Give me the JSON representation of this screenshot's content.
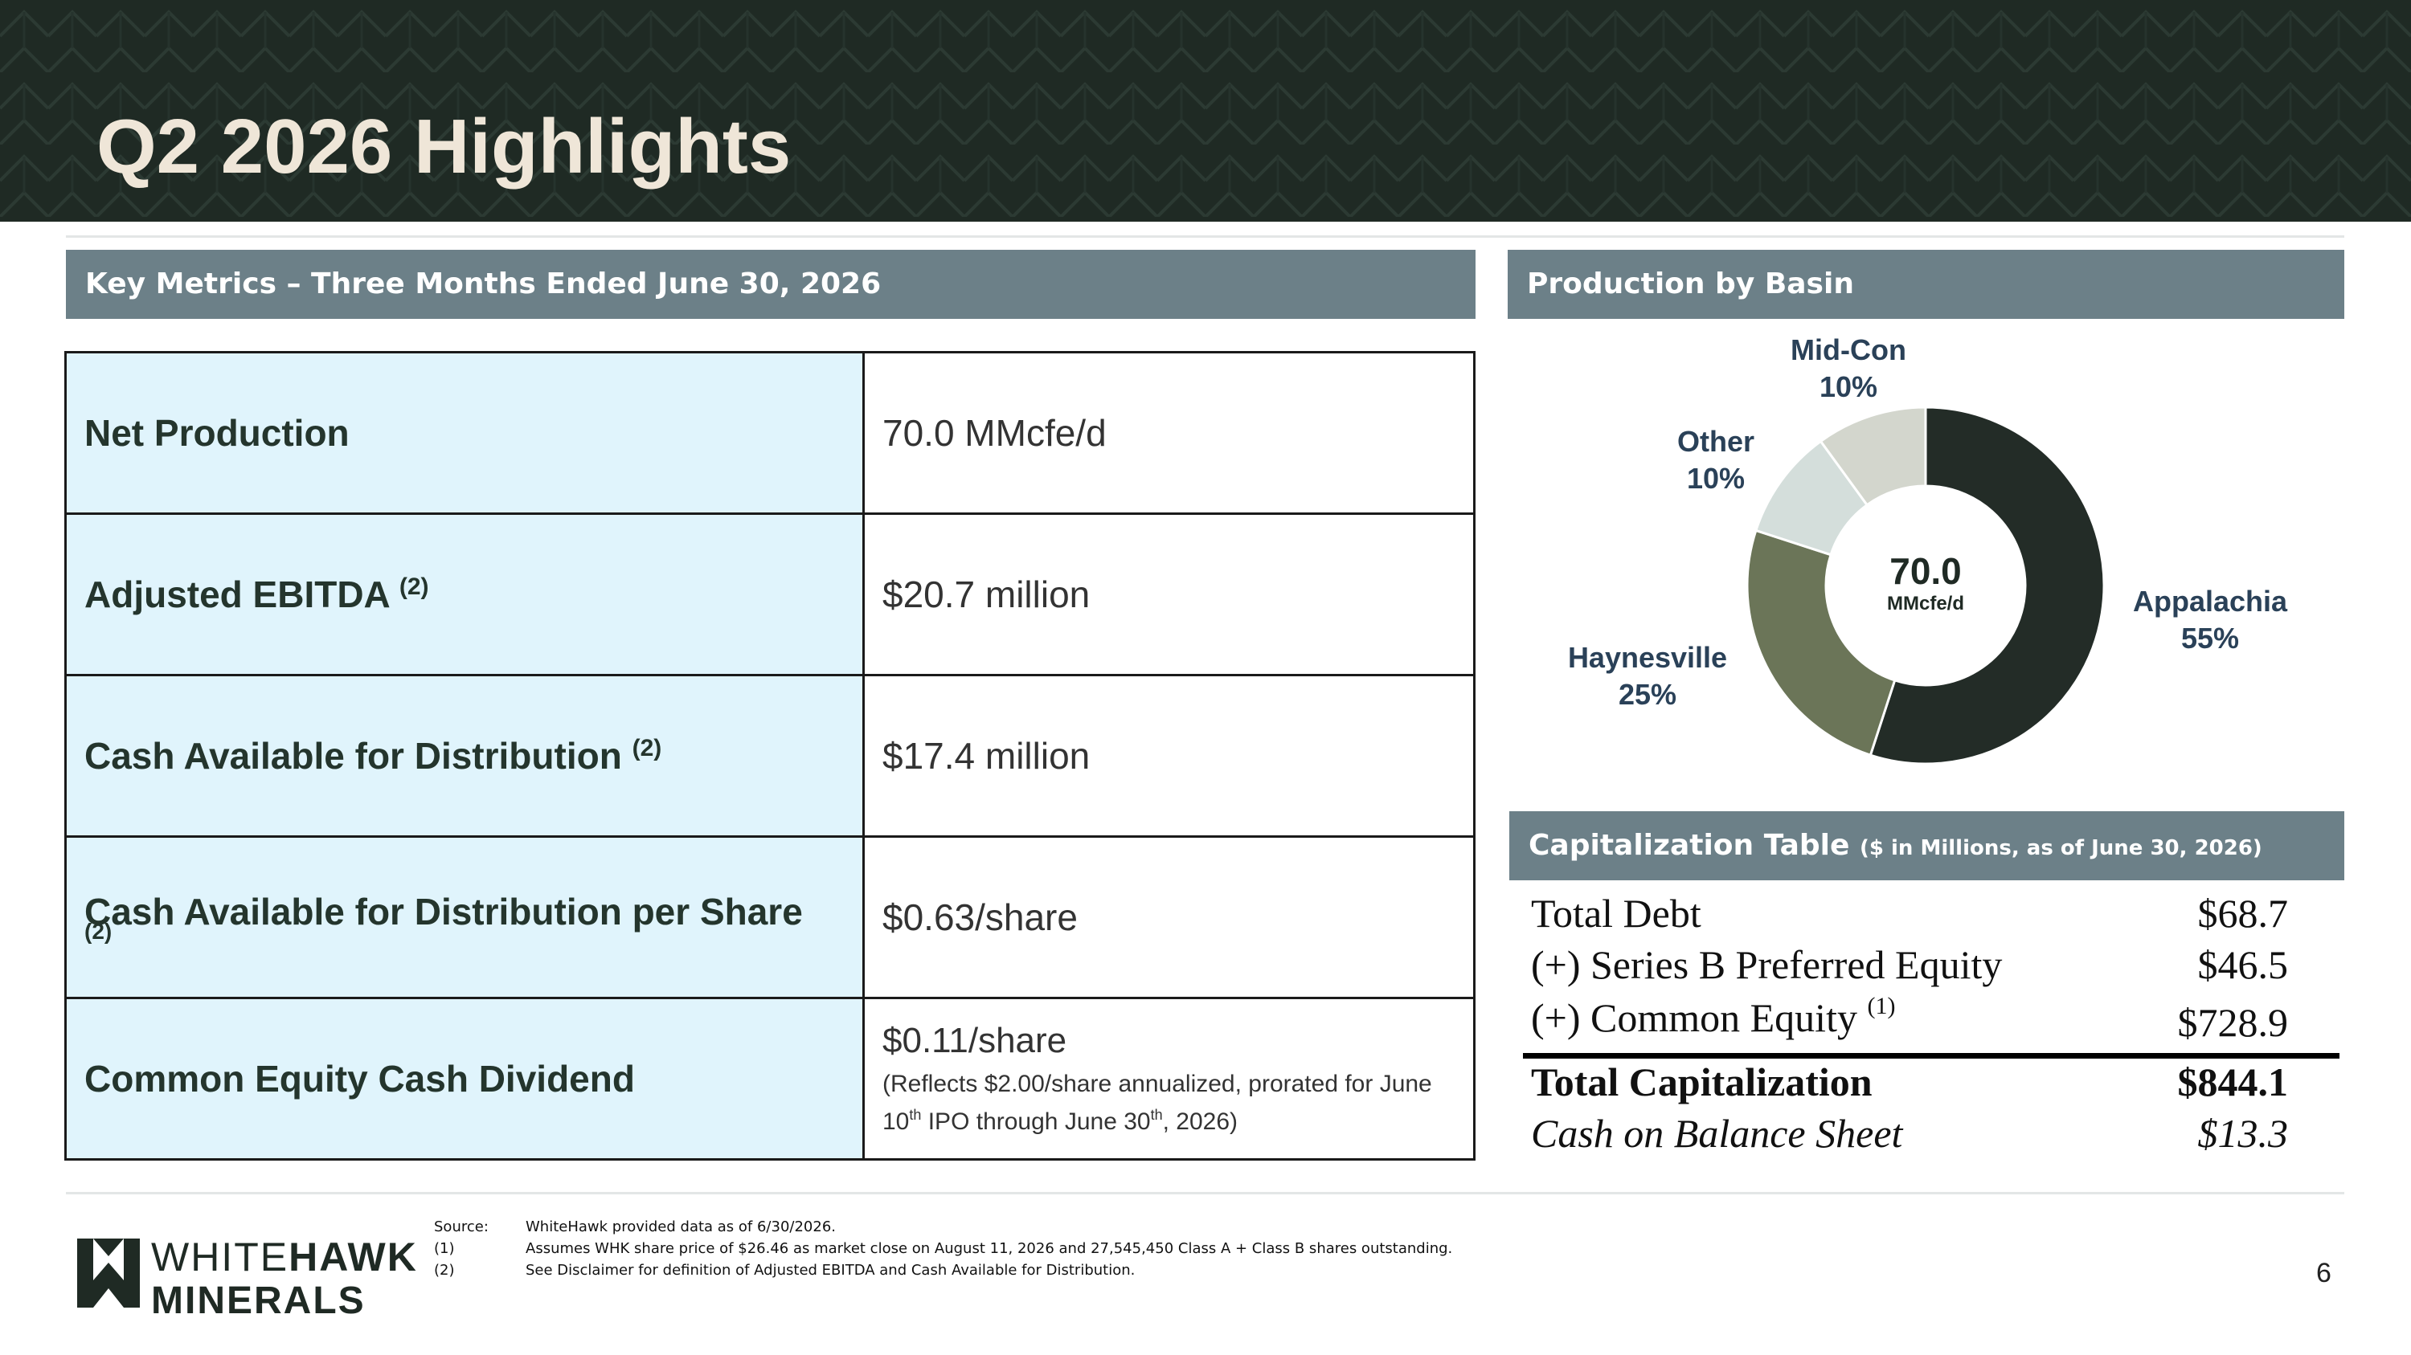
{
  "header": {
    "title": "Q2 2026 Highlights"
  },
  "key_metrics": {
    "heading": "Key Metrics – Three Months Ended June 30, 2026",
    "rows": [
      {
        "label": "Net Production",
        "note": "",
        "value": "70.0 MMcfe/d"
      },
      {
        "label": "Adjusted EBITDA",
        "note": "(2)",
        "value": "$20.7 million"
      },
      {
        "label": "Cash Available for Distribution",
        "note": "(2)",
        "value": "$17.4 million"
      },
      {
        "label": "Cash Available for Distribution per Share",
        "note": "(2)",
        "value": "$0.63/share"
      },
      {
        "label": "Common Equity Cash Dividend",
        "note": "",
        "value": "$0.11/share",
        "detail": {
          "part1": "(Reflects $2.00/share annualized, prorated for June 10",
          "sup1": "th",
          "part2": " IPO through June 30",
          "sup2": "th",
          "part3": ", 2026)"
        }
      }
    ]
  },
  "production": {
    "heading": "Production by Basin",
    "center_value": "70.0",
    "center_unit": "MMcfe/d",
    "chart_data": {
      "type": "pie",
      "categories": [
        "Appalachia",
        "Haynesville",
        "Other",
        "Mid-Con"
      ],
      "values": [
        55,
        25,
        10,
        10
      ],
      "labels": [
        "55%",
        "25%",
        "10%",
        "10%"
      ],
      "colors": [
        "#232c27",
        "#6b7558",
        "#d4dedb",
        "#d3d6cd"
      ]
    }
  },
  "capitalization": {
    "heading": "Capitalization Table",
    "subheading": "($ in Millions, as of June 30, 2026)",
    "rows": [
      {
        "label": "Total Debt",
        "note": "",
        "value": "$68.7"
      },
      {
        "label": "(+) Series B Preferred Equity",
        "note": "",
        "value": "$46.5"
      },
      {
        "label": "(+) Common Equity",
        "note": "(1)",
        "value": "$728.9"
      }
    ],
    "total": {
      "label": "Total Capitalization",
      "value": "$844.1"
    },
    "cash": {
      "label": "Cash on Balance Sheet",
      "value": "$13.3"
    }
  },
  "footer": {
    "logo_line1_light": "WHITE",
    "logo_line1_bold": "HAWK",
    "logo_line2": "MINERALS",
    "sources": [
      {
        "tag": "Source:",
        "text": "WhiteHawk provided data as of 6/30/2026."
      },
      {
        "tag": "(1)",
        "text": "Assumes WHK share price of $26.46 as market close on August 11, 2026 and 27,545,450 Class A + Class B shares outstanding."
      },
      {
        "tag": "(2)",
        "text": "See Disclaimer for definition of Adjusted EBITDA and Cash Available for Distribution."
      }
    ],
    "page_number": "6"
  }
}
